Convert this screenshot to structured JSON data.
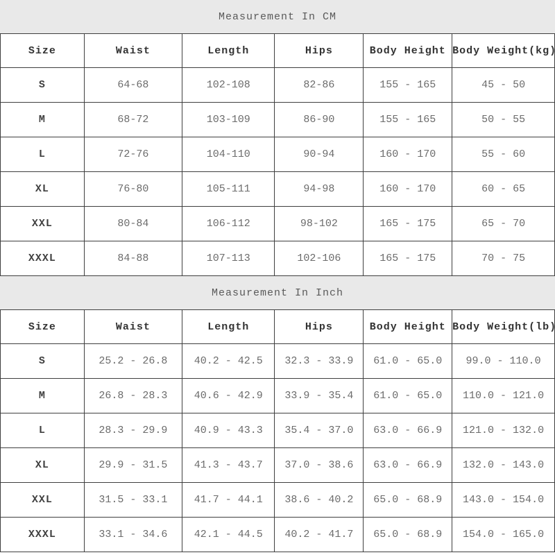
{
  "colors": {
    "band_background": "#e9e9e9",
    "border": "#3e3e3e",
    "header_text": "#333333",
    "cell_text": "#6b6b6b",
    "title_text": "#5a5a5a",
    "page_background": "#ffffff"
  },
  "tables": [
    {
      "title": "Measurement In CM",
      "columns": [
        "Size",
        "Waist",
        "Length",
        "Hips",
        "Body Height",
        "Body Weight(kg)"
      ],
      "rows": [
        [
          "S",
          "64-68",
          "102-108",
          "82-86",
          "155 - 165",
          "45 - 50"
        ],
        [
          "M",
          "68-72",
          "103-109",
          "86-90",
          "155 - 165",
          "50 - 55"
        ],
        [
          "L",
          "72-76",
          "104-110",
          "90-94",
          "160 - 170",
          "55 - 60"
        ],
        [
          "XL",
          "76-80",
          "105-111",
          "94-98",
          "160 - 170",
          "60 - 65"
        ],
        [
          "XXL",
          "80-84",
          "106-112",
          "98-102",
          "165 - 175",
          "65 - 70"
        ],
        [
          "XXXL",
          "84-88",
          "107-113",
          "102-106",
          "165 - 175",
          "70 - 75"
        ]
      ]
    },
    {
      "title": "Measurement In Inch",
      "columns": [
        "Size",
        "Waist",
        "Length",
        "Hips",
        "Body Height",
        "Body Weight(lb)"
      ],
      "rows": [
        [
          "S",
          "25.2 - 26.8",
          "40.2 - 42.5",
          "32.3 - 33.9",
          "61.0 - 65.0",
          "99.0 - 110.0"
        ],
        [
          "M",
          "26.8 - 28.3",
          "40.6 - 42.9",
          "33.9 - 35.4",
          "61.0 - 65.0",
          "110.0 - 121.0"
        ],
        [
          "L",
          "28.3 - 29.9",
          "40.9 - 43.3",
          "35.4 - 37.0",
          "63.0 - 66.9",
          "121.0 - 132.0"
        ],
        [
          "XL",
          "29.9 - 31.5",
          "41.3 - 43.7",
          "37.0 - 38.6",
          "63.0 - 66.9",
          "132.0 - 143.0"
        ],
        [
          "XXL",
          "31.5 - 33.1",
          "41.7 - 44.1",
          "38.6 - 40.2",
          "65.0 - 68.9",
          "143.0 - 154.0"
        ],
        [
          "XXXL",
          "33.1 - 34.6",
          "42.1 - 44.5",
          "40.2 - 41.7",
          "65.0 - 68.9",
          "154.0 - 165.0"
        ]
      ]
    }
  ]
}
